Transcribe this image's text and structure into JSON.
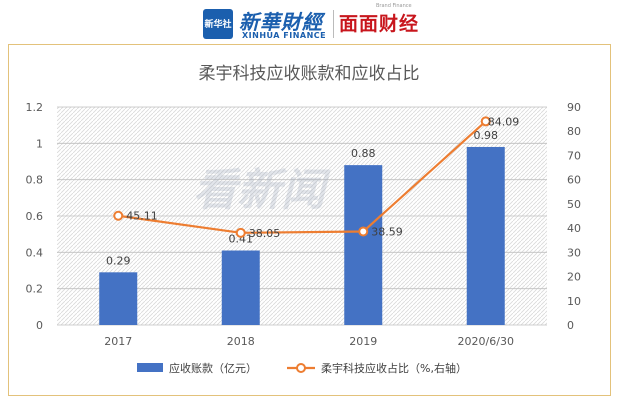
{
  "header": {
    "logo_box_text": "新华社",
    "xinhua_cn": "新華財經",
    "xinhua_en": "XINHUA FINANCE",
    "brand_tag": "Brand Finance",
    "mianmian": "面面财经"
  },
  "watermark": "看新闻",
  "colors": {
    "bar": "#4472c4",
    "line": "#ed7d31",
    "grid_pattern": "#d9d9d9",
    "frame_border": "#e3c27b"
  },
  "chart_data": {
    "type": "bar+line",
    "title": "柔宇科技应收账款和应收占比",
    "categories": [
      "2017",
      "2018",
      "2019",
      "2020/6/30"
    ],
    "series": [
      {
        "name": "应收账款（亿元）",
        "type": "bar",
        "axis": "left",
        "values": [
          0.29,
          0.41,
          0.88,
          0.98
        ],
        "labels": [
          "0.29",
          "0.41",
          "0.88",
          "0.98"
        ]
      },
      {
        "name": "柔宇科技应收占比（%,右轴）",
        "type": "line",
        "axis": "right",
        "values": [
          45.11,
          38.05,
          38.59,
          84.09
        ],
        "labels": [
          "45.11",
          "38.05",
          "38.59",
          "84.09"
        ]
      }
    ],
    "y_left": {
      "min": 0,
      "max": 1.2,
      "ticks": [
        0,
        0.2,
        0.4,
        0.6,
        0.8,
        1,
        1.2
      ],
      "tick_labels": [
        "0",
        "0.2",
        "0.4",
        "0.6",
        "0.8",
        "1",
        "1.2"
      ]
    },
    "y_right": {
      "min": 0,
      "max": 90,
      "ticks": [
        0,
        10,
        20,
        30,
        40,
        50,
        60,
        70,
        80,
        90
      ],
      "tick_labels": [
        "0",
        "10",
        "20",
        "30",
        "40",
        "50",
        "60",
        "70",
        "80",
        "90"
      ]
    },
    "grid": true,
    "legend_position": "bottom"
  }
}
